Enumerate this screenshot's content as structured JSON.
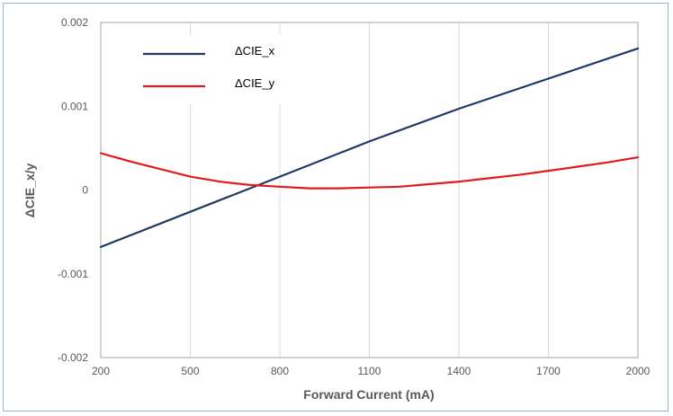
{
  "chart_data": {
    "type": "line",
    "title": "",
    "xlabel": "Forward Current (mA)",
    "ylabel": "ΔCIE_x/y",
    "xlim": [
      200,
      2000
    ],
    "ylim": [
      -0.002,
      0.002
    ],
    "x_ticks": [
      200,
      500,
      800,
      1100,
      1400,
      1700,
      2000
    ],
    "x_tick_labels": [
      "200",
      "500",
      "800",
      "1100",
      "1400",
      "1700",
      "2000"
    ],
    "y_ticks": [
      -0.002,
      -0.001,
      0,
      0.001,
      0.002
    ],
    "y_tick_labels": [
      "-0.002",
      "-0.001",
      "0",
      "0.001",
      "0.002"
    ],
    "grid": "vertical",
    "legend_position": "top-left",
    "series": [
      {
        "name": "ΔCIE_x",
        "color": "#1f3864",
        "x": [
          200,
          500,
          800,
          1100,
          1400,
          1700,
          2000
        ],
        "y": [
          -0.00068,
          -0.00026,
          0.00016,
          0.00058,
          0.00097,
          0.00133,
          0.00169
        ]
      },
      {
        "name": "ΔCIE_y",
        "color": "#e31a1c",
        "x": [
          200,
          300,
          400,
          500,
          600,
          700,
          800,
          900,
          1000,
          1100,
          1200,
          1300,
          1400,
          1500,
          1600,
          1700,
          1800,
          1900,
          2000
        ],
        "y": [
          0.00044,
          0.00034,
          0.00025,
          0.00016,
          0.0001,
          6e-05,
          4e-05,
          2e-05,
          2e-05,
          3e-05,
          4e-05,
          7e-05,
          0.0001,
          0.00014,
          0.00018,
          0.00023,
          0.00028,
          0.00033,
          0.00039
        ]
      }
    ]
  }
}
